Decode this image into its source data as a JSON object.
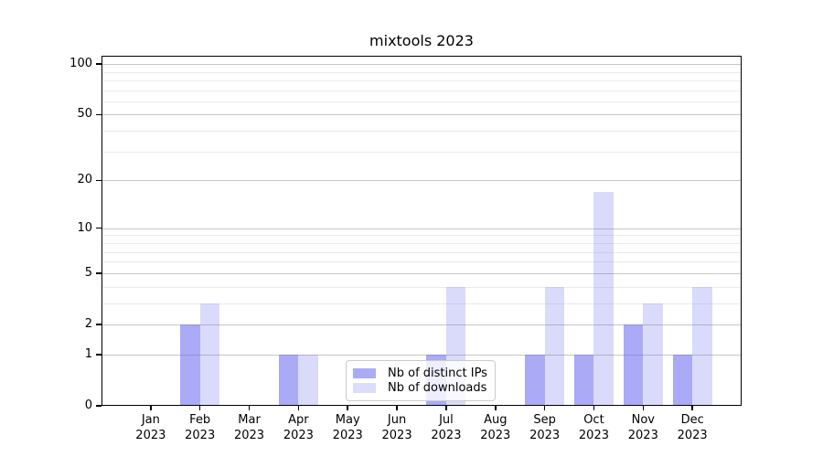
{
  "chart_data": {
    "type": "bar",
    "title": "mixtools 2023",
    "categories": [
      "Jan 2023",
      "Feb 2023",
      "Mar 2023",
      "Apr 2023",
      "May 2023",
      "Jun 2023",
      "Jul 2023",
      "Aug 2023",
      "Sep 2023",
      "Oct 2023",
      "Nov 2023",
      "Dec 2023"
    ],
    "series": [
      {
        "name": "Nb of distinct IPs",
        "fill": "rgba(100,100,240,0.55)",
        "swatch_color": "#abacf6",
        "values": [
          0,
          2,
          0,
          1,
          0,
          0,
          1,
          0,
          1,
          1,
          2,
          1
        ]
      },
      {
        "name": "Nb of downloads",
        "fill": "rgba(100,100,240,0.24)",
        "swatch_color": "#dcdcfb",
        "values": [
          0,
          3,
          0,
          1,
          0,
          0,
          4,
          0,
          4,
          17,
          3,
          4
        ]
      }
    ],
    "xlabel": "",
    "ylabel": "",
    "y_axis": {
      "scale": "log1p",
      "min": 0,
      "max": 112,
      "major_ticks": [
        0,
        1,
        2,
        5,
        10,
        20,
        50,
        100
      ],
      "minor_gridlines": [
        3,
        4,
        6,
        7,
        8,
        9,
        30,
        40,
        60,
        70,
        80,
        90
      ]
    },
    "grid": {
      "enabled": true,
      "major_color": "#c6c6c6",
      "minor_color": "#ebebeb"
    },
    "legend": {
      "position": "lower center-left inside plot",
      "entries": [
        "Nb of distinct IPs",
        "Nb of downloads"
      ]
    },
    "colors": {
      "axis": "#000000",
      "text": "#000000",
      "background": "#ffffff"
    }
  }
}
